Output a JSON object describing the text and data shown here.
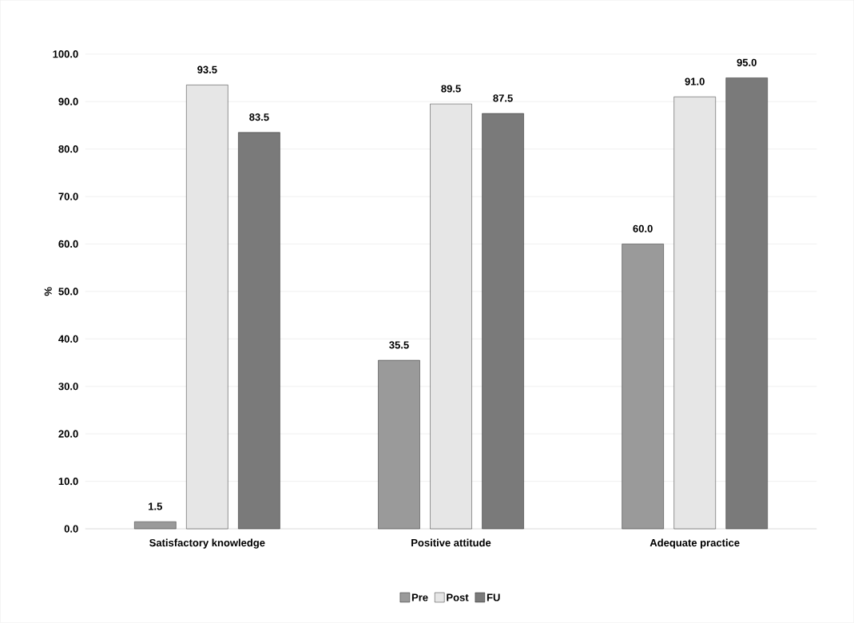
{
  "chart_data": {
    "type": "bar",
    "ylabel": "%",
    "categories": [
      "Satisfactory knowledge",
      "Positive attitude",
      "Adequate practice"
    ],
    "series": [
      {
        "name": "Pre",
        "color": "#9a9a9a",
        "values": [
          1.5,
          35.5,
          60.0
        ],
        "value_labels": [
          "1.5",
          "35.5",
          "60.0"
        ]
      },
      {
        "name": "Post",
        "color": "#e6e6e6",
        "values": [
          93.5,
          89.5,
          91.0
        ],
        "value_labels": [
          "93.5",
          "89.5",
          "91.0"
        ]
      },
      {
        "name": "FU",
        "color": "#7a7a7a",
        "values": [
          83.5,
          87.5,
          95.0
        ],
        "value_labels": [
          "83.5",
          "87.5",
          "95.0"
        ]
      }
    ],
    "ylim": [
      0,
      100
    ],
    "yticks": [
      {
        "value": 0,
        "label": "0.0"
      },
      {
        "value": 10,
        "label": "10.0"
      },
      {
        "value": 20,
        "label": "20.0"
      },
      {
        "value": 30,
        "label": "30.0"
      },
      {
        "value": 40,
        "label": "40.0"
      },
      {
        "value": 50,
        "label": "50.0"
      },
      {
        "value": 60,
        "label": "60.0"
      },
      {
        "value": 70,
        "label": "70.0"
      },
      {
        "value": 80,
        "label": "80.0"
      },
      {
        "value": 90,
        "label": "90.0"
      },
      {
        "value": 100,
        "label": "100.0"
      }
    ],
    "grid": "y",
    "legend": "bottom"
  }
}
